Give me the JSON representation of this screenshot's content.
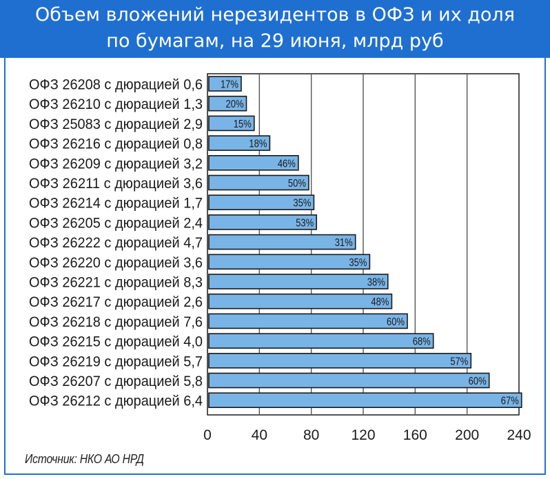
{
  "header": {
    "title_line1": "Объем вложений нерезидентов в ОФЗ и их доля",
    "title_line2": "по бумагам, на 29 июня, млрд руб"
  },
  "source": "Источник: НКО АО НРД",
  "colors": {
    "header_bg": "#1f6fd1",
    "bar_fill": "#79b4e6",
    "bar_stroke": "#1a1a1a",
    "grid": "#555555"
  },
  "chart_data": {
    "type": "bar",
    "orientation": "horizontal",
    "title": "Объем вложений нерезидентов в ОФЗ и их доля по бумагам, на 29 июня, млрд руб",
    "xlim": [
      0,
      240
    ],
    "xticks": [
      0,
      40,
      80,
      120,
      160,
      200,
      240
    ],
    "grid": true,
    "categories": [
      "ОФЗ 26208 с дюрацией 0,6",
      "ОФЗ 26210 с дюрацией 1,3",
      "ОФЗ 25083 с дюрацией 2,9",
      "ОФЗ 26216 с дюрацией 0,8",
      "ОФЗ 26209 с дюрацией 3,2",
      "ОФЗ 26211 с дюрацией 3,6",
      "ОФЗ 26214 с дюрацией 1,7",
      "ОФЗ 26205 с дюрацией 2,4",
      "ОФЗ 26222 с дюрацией 4,7",
      "ОФЗ 26220 с дюрацией 3,6",
      "ОФЗ 26221 с дюрацией 8,3",
      "ОФЗ 26217 с дюрацией 2,6",
      "ОФЗ 26218 с дюрацией 7,6",
      "ОФЗ 26215 с дюрацией 4,0",
      "ОФЗ 26219 с дюрацией 5,7",
      "ОФЗ 26207 с дюрацией 5,8",
      "ОФЗ 26212 с дюрацией 6,4"
    ],
    "values": [
      26,
      30,
      36,
      48,
      70,
      78,
      82,
      84,
      114,
      125,
      139,
      142,
      154,
      174,
      203,
      217,
      242
    ],
    "data_labels": [
      "17%",
      "20%",
      "15%",
      "18%",
      "46%",
      "50%",
      "35%",
      "53%",
      "31%",
      "35%",
      "38%",
      "48%",
      "60%",
      "68%",
      "57%",
      "60%",
      "67%"
    ]
  }
}
